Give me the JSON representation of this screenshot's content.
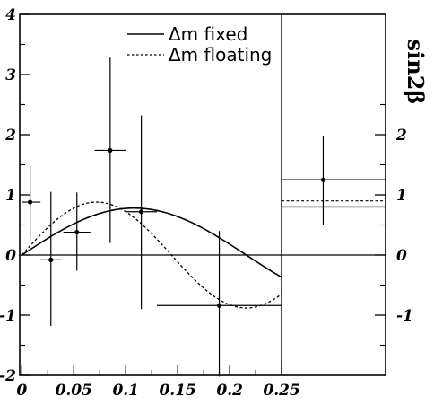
{
  "chart_data": {
    "type": "line",
    "right_axis_title": "sin2β",
    "xlim": [
      -0.002,
      0.35
    ],
    "ylim": [
      -2,
      4
    ],
    "left_y_ticks": [
      "4",
      "3",
      "2",
      "1",
      "0",
      "-1",
      "-2"
    ],
    "left_y_tick_values": [
      4,
      3,
      2,
      1,
      0,
      -1,
      -2
    ],
    "right_y_ticks": [
      "2",
      "1",
      "0",
      "-1"
    ],
    "right_y_tick_values": [
      2,
      1,
      0,
      -1
    ],
    "x_ticks": [
      "0",
      "0.05",
      "0.1",
      "0.15",
      "0.2",
      "0.25"
    ],
    "x_tick_values": [
      0,
      0.05,
      0.1,
      0.15,
      0.2,
      0.25
    ],
    "divider_x": 0.25,
    "legend": {
      "placement": "top-center",
      "entries": [
        {
          "label": "Δm fixed",
          "style": "solid"
        },
        {
          "label": "Δm floating",
          "style": "dotted"
        }
      ]
    },
    "curves": [
      {
        "name": "Δm fixed",
        "style": "solid",
        "amplitude": 0.78,
        "x_peak": 0.108,
        "x_end": 0.25
      },
      {
        "name": "Δm floating",
        "style": "dotted",
        "amplitude": 0.88,
        "x_peak": 0.072,
        "x_end": 0.25
      }
    ],
    "points": [
      {
        "x": 0.008,
        "y": 0.88,
        "xlo": 0.0,
        "xhi": 0.018,
        "ylo": 0.28,
        "yhi": 1.48
      },
      {
        "x": 0.028,
        "y": -0.08,
        "xlo": 0.018,
        "xhi": 0.038,
        "ylo": -1.18,
        "yhi": 1.05
      },
      {
        "x": 0.053,
        "y": 0.38,
        "xlo": 0.04,
        "xhi": 0.066,
        "ylo": -0.26,
        "yhi": 1.04
      },
      {
        "x": 0.085,
        "y": 1.74,
        "xlo": 0.07,
        "xhi": 0.1,
        "ylo": 0.2,
        "yhi": 3.28
      },
      {
        "x": 0.115,
        "y": 0.72,
        "xlo": 0.1,
        "xhi": 0.13,
        "ylo": -0.9,
        "yhi": 2.32
      },
      {
        "x": 0.19,
        "y": -0.84,
        "xlo": 0.13,
        "xhi": 0.25,
        "ylo": -2.02,
        "yhi": 0.4
      },
      {
        "x": 0.29,
        "y": 1.25,
        "xlo": 0.25,
        "xhi": 0.345,
        "ylo": 0.5,
        "yhi": 1.98
      }
    ],
    "combined_bands": [
      {
        "name": "Δm fixed",
        "style": "solid",
        "values": [
          1.25,
          0.8
        ]
      },
      {
        "name": "Δm floating",
        "style": "dotted",
        "values": [
          0.9
        ]
      }
    ]
  }
}
